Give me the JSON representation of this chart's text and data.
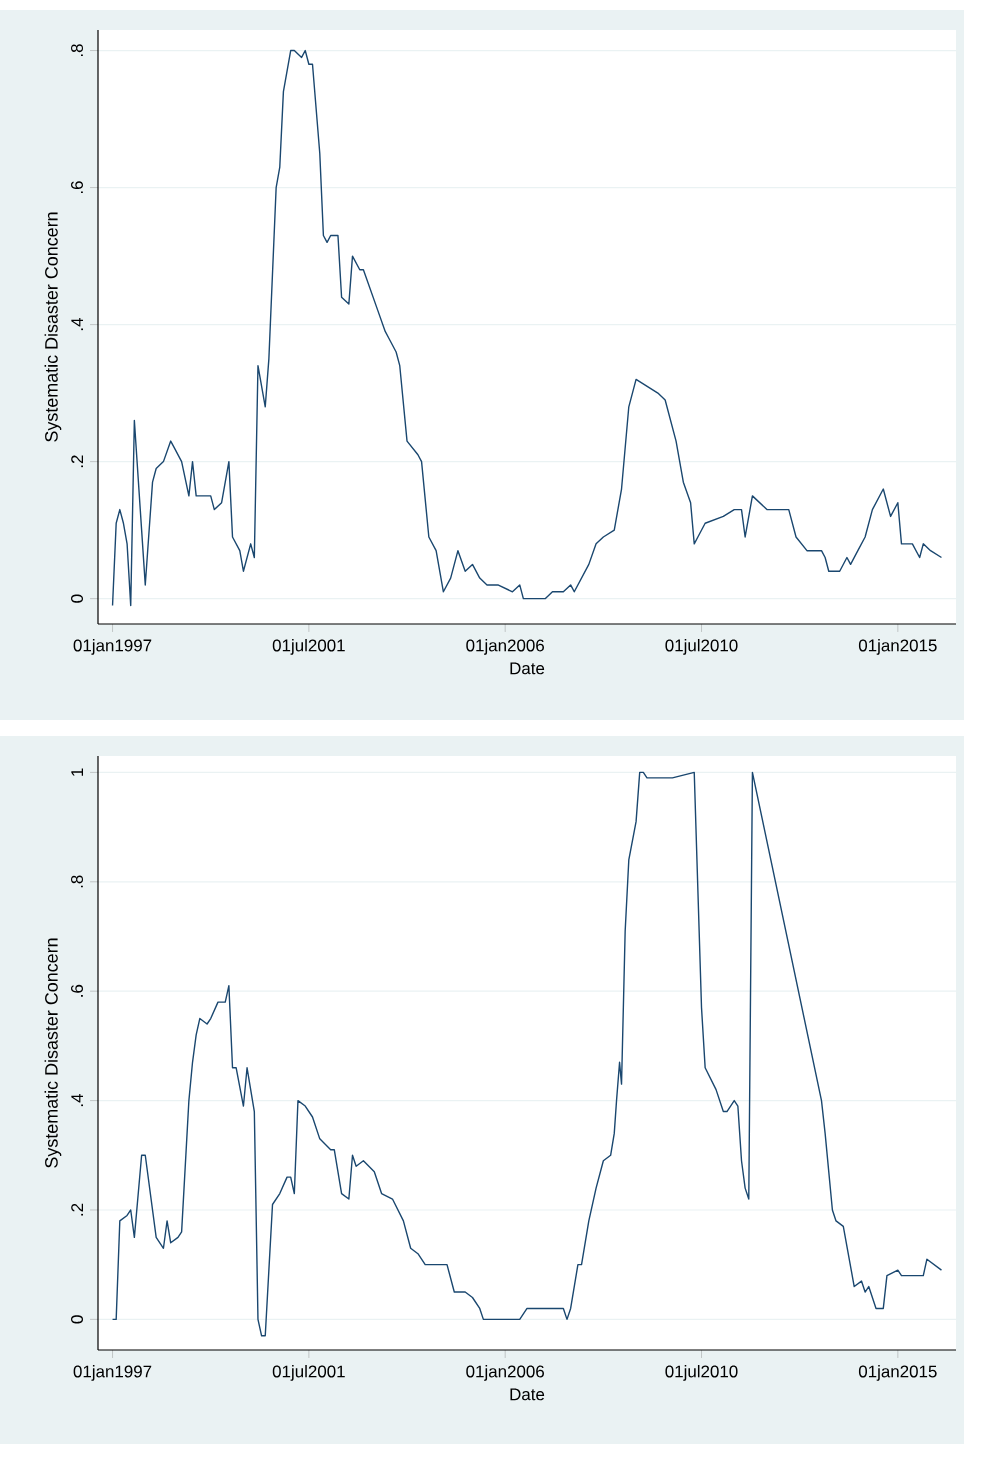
{
  "chart_data": [
    {
      "type": "line",
      "xlabel": "Date",
      "ylabel": "Systematic Disaster Concern",
      "grid": "y",
      "xlim": [
        "1996-09",
        "2016-05"
      ],
      "ylim": [
        -0.037,
        0.83
      ],
      "xticks": [
        {
          "value": "1997-01-01",
          "label": "01jan1997"
        },
        {
          "value": "2001-07-01",
          "label": "01jul2001"
        },
        {
          "value": "2006-01-01",
          "label": "01jan2006"
        },
        {
          "value": "2010-07-01",
          "label": "01jul2010"
        },
        {
          "value": "2015-01-01",
          "label": "01jan2015"
        }
      ],
      "yticks": [
        0,
        {
          "value": 0.2,
          "label": ".2"
        },
        {
          "value": 0.4,
          "label": ".4"
        },
        {
          "value": 0.6,
          "label": ".6"
        },
        {
          "value": 0.8,
          "label": ".8"
        }
      ],
      "x": [
        "1997-01",
        "1997-02",
        "1997-03",
        "1997-04",
        "1997-05",
        "1997-06",
        "1997-07",
        "1997-09",
        "1997-10",
        "1997-12",
        "1998-01",
        "1998-03",
        "1998-05",
        "1998-06",
        "1998-08",
        "1998-10",
        "1998-11",
        "1998-12",
        "1999-04",
        "1999-05",
        "1999-07",
        "1999-09",
        "1999-10",
        "1999-12",
        "2000-01",
        "2000-03",
        "2000-04",
        "2000-05",
        "2000-07",
        "2000-08",
        "2000-10",
        "2000-11",
        "2000-12",
        "2001-02",
        "2001-03",
        "2001-05",
        "2001-06",
        "2001-07",
        "2001-08",
        "2001-10",
        "2001-11",
        "2001-12",
        "2002-01",
        "2002-03",
        "2002-04",
        "2002-06",
        "2002-07",
        "2002-09",
        "2002-10",
        "2002-12",
        "2003-02",
        "2003-04",
        "2003-05",
        "2003-07",
        "2003-08",
        "2003-10",
        "2004-01",
        "2004-02",
        "2004-04",
        "2004-06",
        "2004-08",
        "2004-10",
        "2004-12",
        "2005-02",
        "2005-04",
        "2005-06",
        "2005-08",
        "2005-11",
        "2006-03",
        "2006-05",
        "2006-06",
        "2006-12",
        "2007-02",
        "2007-05",
        "2007-07",
        "2007-08",
        "2007-10",
        "2007-12",
        "2008-02",
        "2008-04",
        "2008-07",
        "2008-09",
        "2008-11",
        "2009-01",
        "2009-04",
        "2009-07",
        "2009-09",
        "2009-12",
        "2010-02",
        "2010-04",
        "2010-05",
        "2010-06",
        "2010-08",
        "2011-01",
        "2011-04",
        "2011-06",
        "2011-07",
        "2011-09",
        "2012-01",
        "2012-07",
        "2012-09",
        "2012-12",
        "2013-04",
        "2013-05",
        "2013-06",
        "2013-09",
        "2013-11",
        "2013-12",
        "2014-02",
        "2014-04",
        "2014-06",
        "2014-09",
        "2014-11",
        "2015-01",
        "2015-02",
        "2015-05",
        "2015-07",
        "2015-08",
        "2015-10",
        "2016-01"
      ],
      "series": [
        {
          "color": "#1a476f",
          "values": [
            -0.01,
            0.11,
            0.13,
            0.11,
            0.08,
            -0.01,
            0.26,
            0.1,
            0.02,
            0.17,
            0.19,
            0.2,
            0.23,
            0.22,
            0.2,
            0.15,
            0.2,
            0.15,
            0.15,
            0.13,
            0.14,
            0.2,
            0.09,
            0.07,
            0.04,
            0.08,
            0.06,
            0.34,
            0.28,
            0.35,
            0.6,
            0.63,
            0.74,
            0.8,
            0.8,
            0.79,
            0.8,
            0.78,
            0.78,
            0.65,
            0.53,
            0.52,
            0.53,
            0.53,
            0.44,
            0.43,
            0.5,
            0.48,
            0.48,
            0.45,
            0.42,
            0.39,
            0.38,
            0.36,
            0.34,
            0.23,
            0.21,
            0.2,
            0.09,
            0.07,
            0.01,
            0.03,
            0.07,
            0.04,
            0.05,
            0.03,
            0.02,
            0.02,
            0.01,
            0.02,
            0.0,
            0.0,
            0.01,
            0.01,
            0.02,
            0.01,
            0.03,
            0.05,
            0.08,
            0.09,
            0.1,
            0.16,
            0.28,
            0.32,
            0.31,
            0.3,
            0.29,
            0.23,
            0.17,
            0.14,
            0.08,
            0.09,
            0.11,
            0.12,
            0.13,
            0.13,
            0.09,
            0.15,
            0.13,
            0.13,
            0.09,
            0.07,
            0.07,
            0.06,
            0.04,
            0.04,
            0.06,
            0.05,
            0.07,
            0.09,
            0.13,
            0.16,
            0.12,
            0.14,
            0.08,
            0.08,
            0.06,
            0.08,
            0.07,
            0.06
          ]
        }
      ]
    },
    {
      "type": "line",
      "xlabel": "Date",
      "ylabel": "Systematic Disaster Concern",
      "grid": "y",
      "xlim": [
        "1996-09",
        "2016-05"
      ],
      "ylim": [
        -0.056,
        1.03
      ],
      "xticks": [
        {
          "value": "1997-01-01",
          "label": "01jan1997"
        },
        {
          "value": "2001-07-01",
          "label": "01jul2001"
        },
        {
          "value": "2006-01-01",
          "label": "01jan2006"
        },
        {
          "value": "2010-07-01",
          "label": "01jul2010"
        },
        {
          "value": "2015-01-01",
          "label": "01jan2015"
        }
      ],
      "yticks": [
        0,
        {
          "value": 0.2,
          "label": ".2"
        },
        {
          "value": 0.4,
          "label": ".4"
        },
        {
          "value": 0.6,
          "label": ".6"
        },
        {
          "value": 0.8,
          "label": ".8"
        },
        1
      ],
      "x": [
        "1997-01",
        "1997-02",
        "1997-03",
        "1997-05",
        "1997-06",
        "1997-07",
        "1997-09",
        "1997-10",
        "1998-01",
        "1998-03",
        "1998-04",
        "1998-05",
        "1998-07",
        "1998-08",
        "1998-10",
        "1998-11",
        "1998-12",
        "1999-01",
        "1999-03",
        "1999-04",
        "1999-06",
        "1999-08",
        "1999-09",
        "1999-10",
        "1999-11",
        "2000-01",
        "2000-02",
        "2000-04",
        "2000-05",
        "2000-06",
        "2000-07",
        "2000-09",
        "2000-11",
        "2001-01",
        "2001-02",
        "2001-03",
        "2001-04",
        "2001-06",
        "2001-08",
        "2001-10",
        "2002-01",
        "2002-02",
        "2002-04",
        "2002-06",
        "2002-07",
        "2002-08",
        "2002-10",
        "2003-01",
        "2003-03",
        "2003-06",
        "2003-09",
        "2003-11",
        "2004-01",
        "2004-03",
        "2004-09",
        "2004-11",
        "2005-02",
        "2005-04",
        "2005-06",
        "2005-07",
        "2006-05",
        "2006-07",
        "2006-12",
        "2007-05",
        "2007-06",
        "2007-07",
        "2007-09",
        "2007-10",
        "2007-12",
        "2008-02",
        "2008-04",
        "2008-06",
        "2008-07",
        "2008-07-20",
        "2008-08-15",
        "2008-09",
        "2008-10",
        "2008-11",
        "2009-01",
        "2009-02",
        "2009-03",
        "2009-04",
        "2009-11",
        "2010-05",
        "2010-07",
        "2010-08",
        "2010-11",
        "2011-01",
        "2011-02",
        "2011-04",
        "2011-05",
        "2011-06",
        "2011-07",
        "2011-08",
        "2011-09",
        "2013-04",
        "2013-05",
        "2013-07",
        "2013-08",
        "2013-10",
        "2014-01",
        "2014-03",
        "2014-04",
        "2014-05",
        "2014-07",
        "2014-09",
        "2014-10",
        "2015-01",
        "2015-02",
        "2015-07",
        "2015-08",
        "2015-09",
        "2015-11",
        "2016-01"
      ],
      "series": [
        {
          "color": "#1a476f",
          "values": [
            0.0,
            0.0,
            0.18,
            0.19,
            0.2,
            0.15,
            0.3,
            0.3,
            0.15,
            0.13,
            0.18,
            0.14,
            0.15,
            0.16,
            0.4,
            0.47,
            0.52,
            0.55,
            0.54,
            0.55,
            0.58,
            0.58,
            0.61,
            0.46,
            0.46,
            0.39,
            0.46,
            0.38,
            0.0,
            -0.03,
            -0.03,
            0.21,
            0.23,
            0.26,
            0.26,
            0.23,
            0.4,
            0.39,
            0.37,
            0.33,
            0.31,
            0.31,
            0.23,
            0.22,
            0.3,
            0.28,
            0.29,
            0.27,
            0.23,
            0.22,
            0.18,
            0.13,
            0.12,
            0.1,
            0.1,
            0.05,
            0.05,
            0.04,
            0.02,
            0.0,
            0.0,
            0.02,
            0.02,
            0.02,
            0.0,
            0.02,
            0.1,
            0.1,
            0.18,
            0.24,
            0.29,
            0.3,
            0.34,
            0.4,
            0.47,
            0.43,
            0.71,
            0.84,
            0.91,
            1.0,
            1.0,
            0.99,
            0.99,
            1.0,
            0.57,
            0.46,
            0.42,
            0.38,
            0.38,
            0.4,
            0.39,
            0.29,
            0.24,
            0.22,
            1.0,
            0.4,
            0.34,
            0.2,
            0.18,
            0.17,
            0.06,
            0.07,
            0.05,
            0.06,
            0.02,
            0.02,
            0.08,
            0.09,
            0.08,
            0.08,
            0.08,
            0.11,
            0.1,
            0.09
          ]
        }
      ]
    }
  ]
}
